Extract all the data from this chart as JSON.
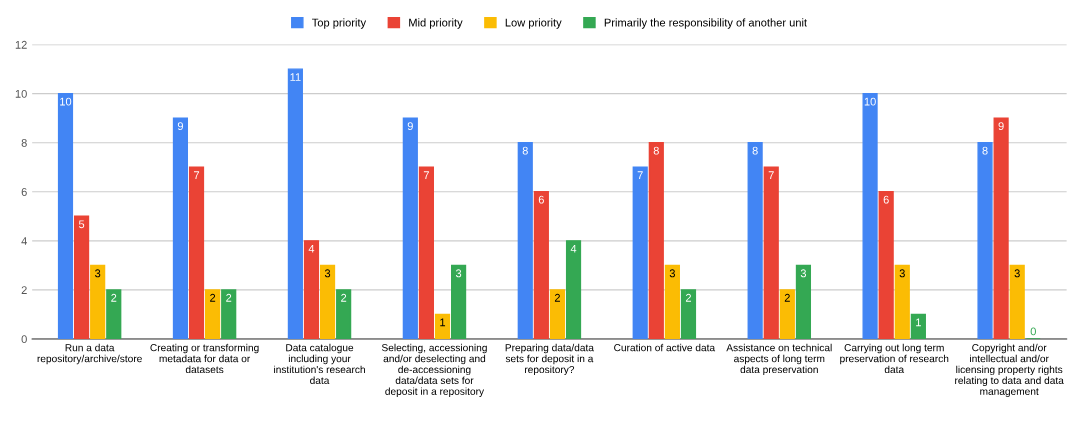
{
  "chart_data": {
    "type": "bar",
    "categories": [
      "Run a data\nrepository/archive/store",
      "Creating or transforming\nmetadata for data or\ndatasets",
      "Data catalogue\nincluding your\ninstitution's research\ndata",
      "Selecting, accessioning\nand/or deselecting and\nde-accessioning\ndata/data sets for\ndeposit in a repository",
      "Preparing data/data\nsets for deposit in a\nrepository?",
      "Curation of active data",
      "Assistance on technical\naspects of long term\ndata preservation",
      "Carrying out long term\npreservation of research\ndata",
      "Copyright and/or\nintellectual and/or\nlicensing property rights\nrelating to data and data\nmanagement"
    ],
    "series": [
      {
        "name": "Top priority",
        "color": "#4285f4",
        "values": [
          10,
          9,
          11,
          9,
          8,
          7,
          8,
          10,
          8
        ]
      },
      {
        "name": "Mid priority",
        "color": "#ea4335",
        "values": [
          5,
          7,
          4,
          7,
          6,
          8,
          7,
          6,
          9
        ]
      },
      {
        "name": "Low priority",
        "color": "#fbbc04",
        "values": [
          3,
          2,
          3,
          1,
          2,
          3,
          2,
          3,
          3
        ]
      },
      {
        "name": "Primarily the responsibility of another unit",
        "color": "#34a853",
        "values": [
          2,
          2,
          2,
          3,
          4,
          2,
          3,
          1,
          0
        ]
      }
    ],
    "ylim": [
      0,
      12
    ],
    "yticks": [
      0,
      2,
      4,
      6,
      8,
      10,
      12
    ],
    "grid": "y",
    "legend": "top",
    "data_labels": true
  }
}
